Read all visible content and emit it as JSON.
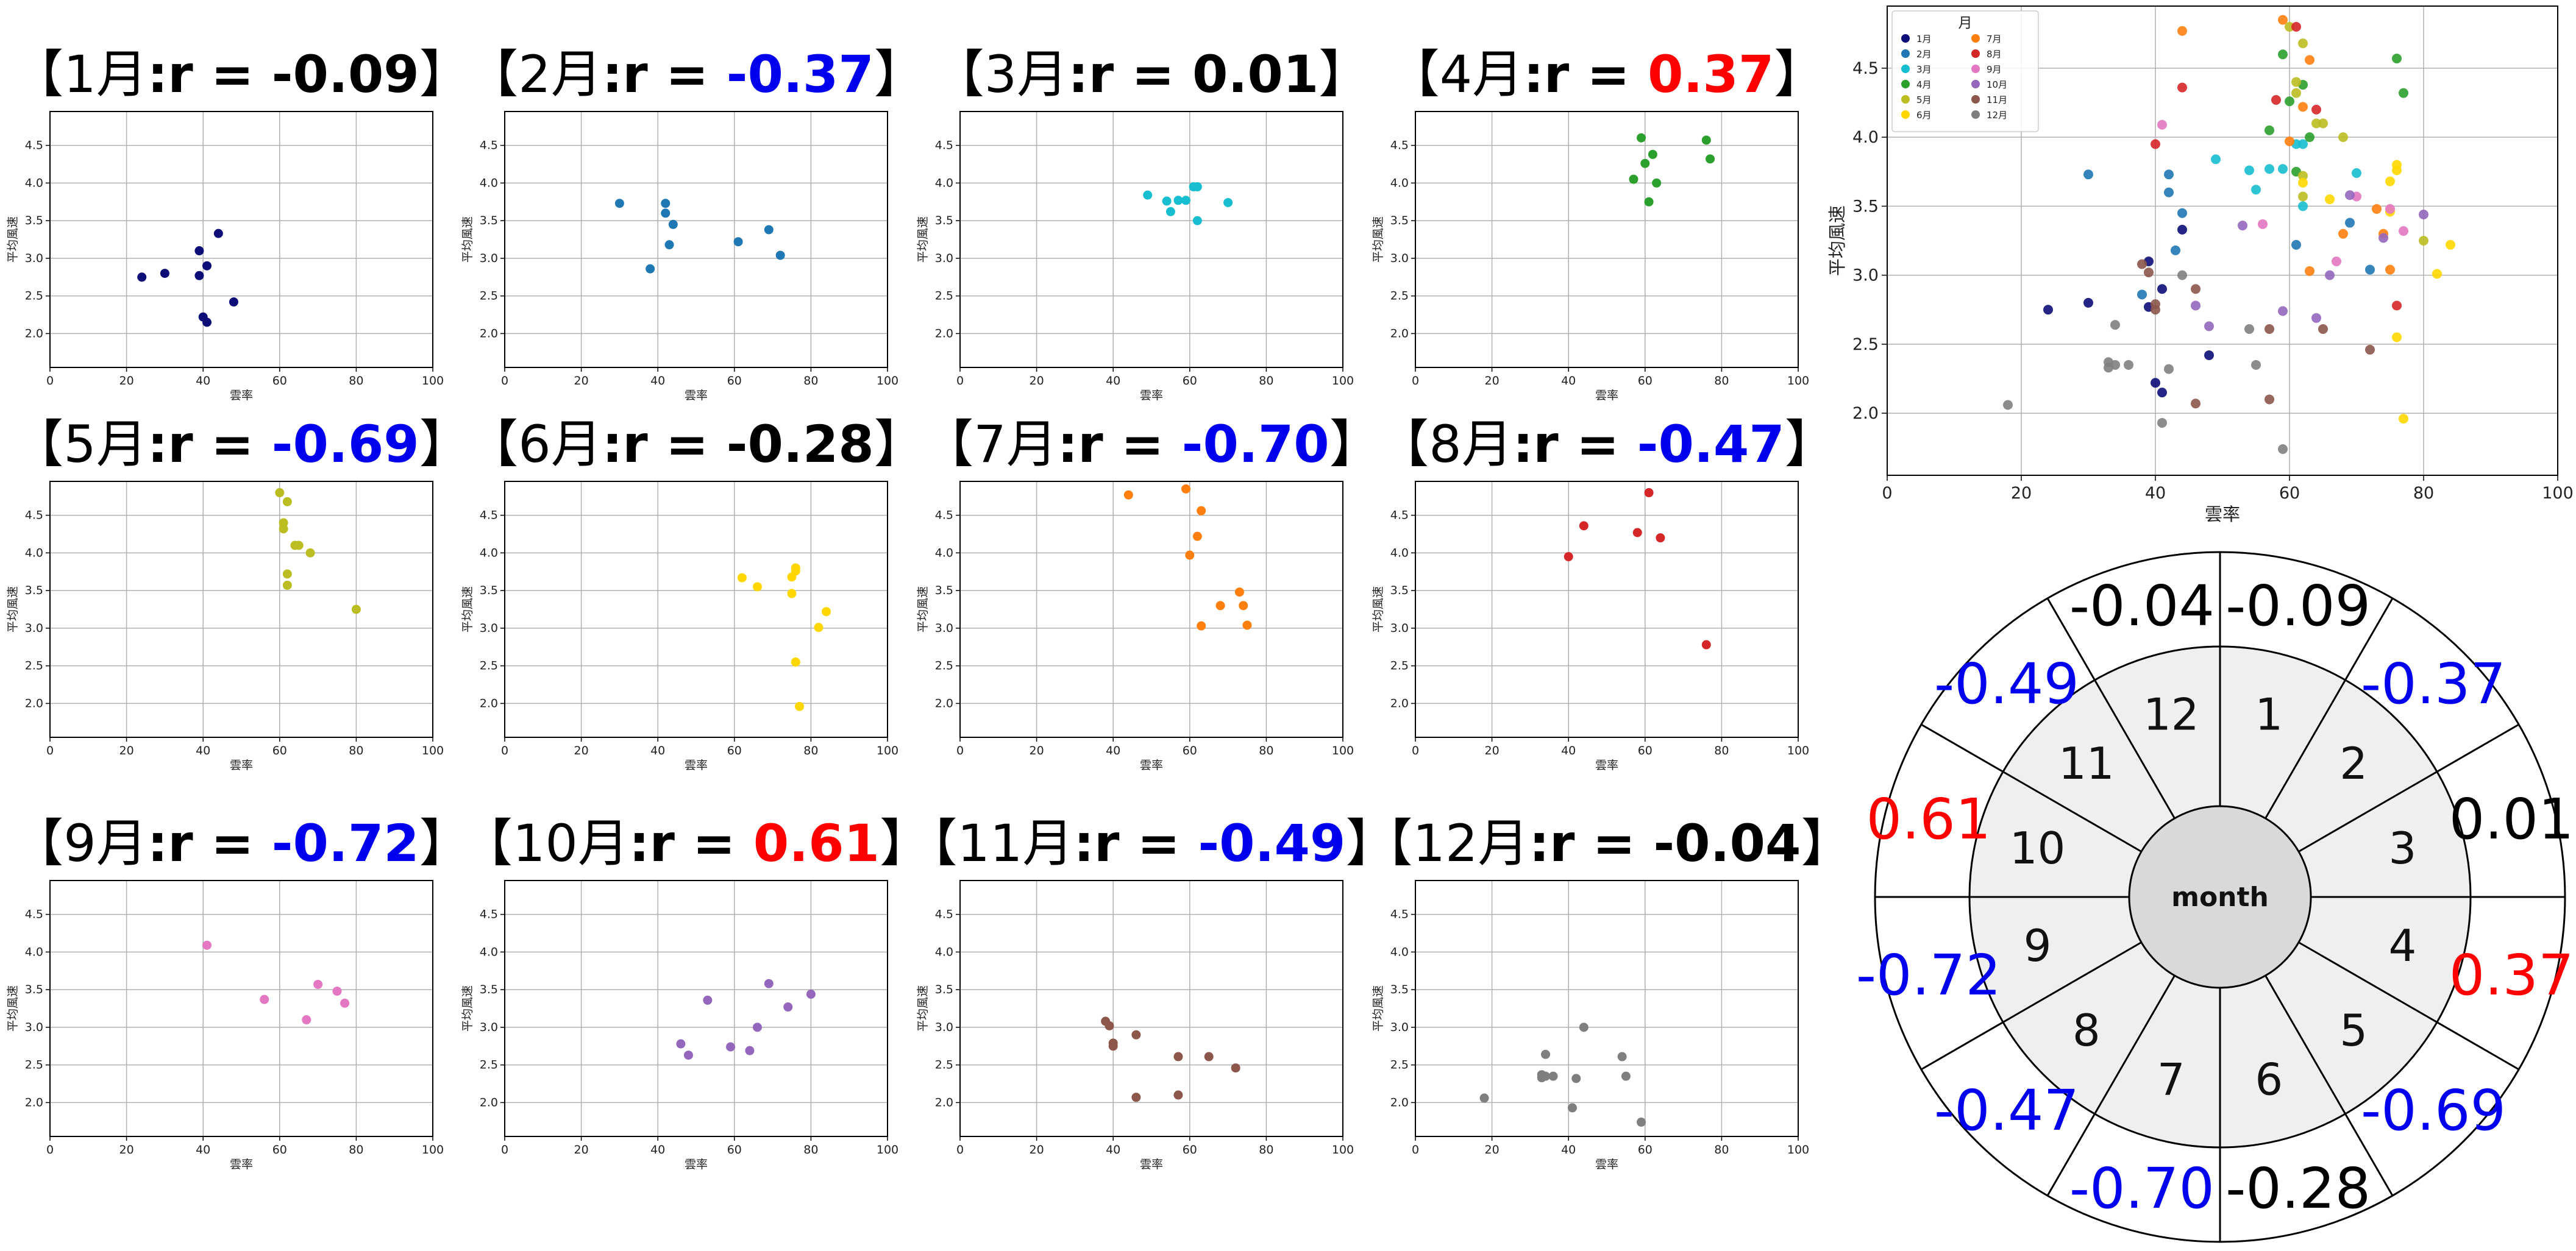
{
  "panel_title_template": {
    "open": "【",
    "month_suffix": "月",
    "sep": ":",
    "r_prefix": "r = ",
    "close": "】"
  },
  "colors": {
    "positive": "#ff0000",
    "negative": "#0000ee",
    "neutral": "#000000",
    "grid": "#b0b0b0",
    "wheel_ring": "#efefef",
    "wheel_center": "#d9d9d9"
  },
  "small_axes": {
    "xlabel": "雲率",
    "ylabel": "平均風速",
    "xlim": [
      0,
      100
    ],
    "ylim": [
      1.55,
      4.95
    ],
    "xticks": [
      0,
      20,
      40,
      60,
      80,
      100
    ],
    "yticks": [
      2.0,
      2.5,
      3.0,
      3.5,
      4.0,
      4.5
    ]
  },
  "chart_data": [
    {
      "type": "scatter",
      "month": "1",
      "r": "-0.09",
      "color": "#0d0d78",
      "x": [
        24,
        30,
        39,
        39,
        40,
        41,
        44,
        48,
        41
      ],
      "y": [
        2.75,
        2.8,
        2.77,
        3.1,
        2.22,
        2.9,
        3.33,
        2.42,
        2.15
      ]
    },
    {
      "type": "scatter",
      "month": "2",
      "r": "-0.37",
      "color": "#1f77b4",
      "x": [
        30,
        38,
        42,
        42,
        43,
        44,
        61,
        69,
        72
      ],
      "y": [
        3.73,
        2.86,
        3.6,
        3.73,
        3.18,
        3.45,
        3.22,
        3.38,
        3.04
      ]
    },
    {
      "type": "scatter",
      "month": "3",
      "r": "0.01",
      "color": "#17becf",
      "x": [
        49,
        54,
        55,
        57,
        59,
        61,
        62,
        62,
        70
      ],
      "y": [
        3.84,
        3.76,
        3.62,
        3.77,
        3.77,
        3.95,
        3.5,
        3.95,
        3.74
      ]
    },
    {
      "type": "scatter",
      "month": "4",
      "r": "0.37",
      "color": "#2ca02c",
      "x": [
        57,
        59,
        60,
        61,
        62,
        63,
        76,
        77
      ],
      "y": [
        4.05,
        4.6,
        4.26,
        3.75,
        4.38,
        4.0,
        4.57,
        4.32
      ]
    },
    {
      "type": "scatter",
      "month": "5",
      "r": "-0.69",
      "color": "#bcbd22",
      "x": [
        60,
        61,
        61,
        62,
        62,
        62,
        64,
        65,
        68,
        80
      ],
      "y": [
        4.8,
        4.4,
        4.32,
        4.68,
        3.72,
        3.57,
        4.1,
        4.1,
        4.0,
        3.25
      ]
    },
    {
      "type": "scatter",
      "month": "6",
      "r": "-0.28",
      "color": "#ffd700",
      "x": [
        62,
        66,
        75,
        75,
        76,
        76,
        77,
        82,
        84,
        76
      ],
      "y": [
        3.67,
        3.55,
        3.46,
        3.68,
        3.76,
        3.8,
        1.96,
        3.01,
        3.22,
        2.55
      ]
    },
    {
      "type": "scatter",
      "month": "7",
      "r": "-0.70",
      "color": "#ff7f0e",
      "x": [
        44,
        59,
        60,
        62,
        63,
        63,
        68,
        73,
        74,
        75
      ],
      "y": [
        4.77,
        4.85,
        3.97,
        4.22,
        3.03,
        4.56,
        3.3,
        3.48,
        3.3,
        3.04
      ]
    },
    {
      "type": "scatter",
      "month": "8",
      "r": "-0.47",
      "color": "#d62728",
      "x": [
        40,
        44,
        58,
        61,
        64,
        76
      ],
      "y": [
        3.95,
        4.36,
        4.27,
        4.8,
        4.2,
        2.78
      ]
    },
    {
      "type": "scatter",
      "month": "9",
      "r": "-0.72",
      "color": "#e377c2",
      "x": [
        41,
        56,
        67,
        70,
        75,
        77
      ],
      "y": [
        4.09,
        3.37,
        3.1,
        3.57,
        3.48,
        3.32
      ]
    },
    {
      "type": "scatter",
      "month": "10",
      "r": "0.61",
      "color": "#9467bd",
      "x": [
        46,
        48,
        53,
        59,
        64,
        66,
        69,
        74,
        80
      ],
      "y": [
        2.78,
        2.63,
        3.36,
        2.74,
        2.69,
        3.0,
        3.58,
        3.27,
        3.44
      ]
    },
    {
      "type": "scatter",
      "month": "11",
      "r": "-0.49",
      "color": "#8c564b",
      "x": [
        38,
        39,
        40,
        40,
        46,
        46,
        57,
        57,
        65,
        72
      ],
      "y": [
        3.08,
        3.02,
        2.75,
        2.79,
        2.9,
        2.07,
        2.61,
        2.1,
        2.61,
        2.46
      ]
    },
    {
      "type": "scatter",
      "month": "12",
      "r": "-0.04",
      "color": "#7f7f7f",
      "x": [
        18,
        33,
        33,
        34,
        34,
        36,
        41,
        42,
        44,
        54,
        55,
        59
      ],
      "y": [
        2.06,
        2.37,
        2.33,
        2.64,
        2.35,
        2.35,
        1.93,
        2.32,
        3.0,
        2.61,
        2.35,
        1.74
      ]
    }
  ],
  "combined": {
    "xlabel": "雲率",
    "ylabel": "平均風速",
    "xlim": [
      0,
      100
    ],
    "ylim": [
      1.55,
      4.95
    ],
    "xticks": [
      0,
      20,
      40,
      60,
      80,
      100
    ],
    "yticks": [
      2.0,
      2.5,
      3.0,
      3.5,
      4.0,
      4.5
    ],
    "legend_title": "月",
    "legend_labels": [
      "1月",
      "2月",
      "3月",
      "4月",
      "5月",
      "6月",
      "7月",
      "8月",
      "9月",
      "10月",
      "11月",
      "12月"
    ],
    "legend_position": "top-left"
  },
  "wheel": {
    "center_label": "month",
    "inner_numbers": [
      "1",
      "2",
      "3",
      "4",
      "5",
      "6",
      "7",
      "8",
      "9",
      "10",
      "11",
      "12"
    ],
    "outer_values": [
      "-0.09",
      "-0.37",
      "0.01",
      "0.37",
      "-0.69",
      "-0.28",
      "-0.70",
      "-0.47",
      "-0.72",
      "0.61",
      "-0.49",
      "-0.04"
    ],
    "outer_color_keys": [
      "neutral",
      "negative",
      "neutral",
      "positive",
      "negative",
      "neutral",
      "negative",
      "negative",
      "negative",
      "positive",
      "negative",
      "neutral"
    ]
  }
}
